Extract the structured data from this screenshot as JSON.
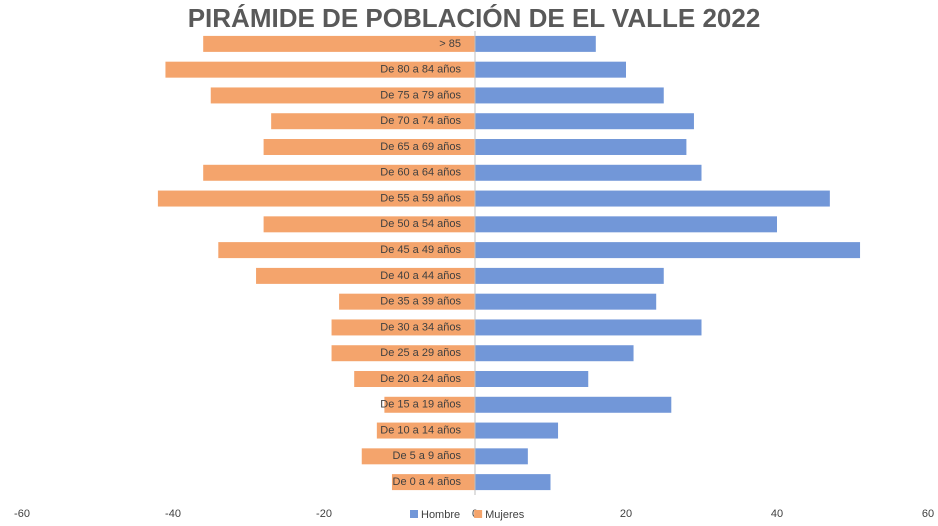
{
  "chart_data": {
    "type": "bar",
    "orientation": "horizontal",
    "title": "PIRÁMIDE DE POBLACIÓN DE EL VALLE 2022",
    "categories": [
      "> 85",
      "De 80 a 84 años",
      "De 75 a 79 años",
      "De 70 a 74 años",
      "De 65 a 69 años",
      "De 60 a 64 años",
      "De 55 a 59 años",
      "De 50 a 54 años",
      "De 45 a 49 años",
      "De 40 a 44 años",
      "De 35 a 39 años",
      "De 30 a 34 años",
      "De 25 a 29 años",
      "De 20 a 24 años",
      "De 15 a 19 años",
      "De 10 a 14 años",
      "De 5 a 9 años",
      "De 0 a 4 años"
    ],
    "series": [
      {
        "name": "Hombre",
        "color": "#7297d8",
        "values": [
          16,
          20,
          25,
          29,
          28,
          30,
          47,
          40,
          51,
          25,
          24,
          30,
          21,
          15,
          26,
          11,
          7,
          10
        ]
      },
      {
        "name": "Mujeres",
        "color": "#f4a46c",
        "values": [
          -36,
          -41,
          -35,
          -27,
          -28,
          -36,
          -42,
          -28,
          -34,
          -29,
          -18,
          -19,
          -19,
          -16,
          -12,
          -13,
          -15,
          -11
        ]
      }
    ],
    "xlim": [
      -60,
      60
    ],
    "xticks": [
      -60,
      -40,
      -20,
      0,
      20,
      40,
      60
    ],
    "grid": false,
    "legend": "bottom"
  }
}
